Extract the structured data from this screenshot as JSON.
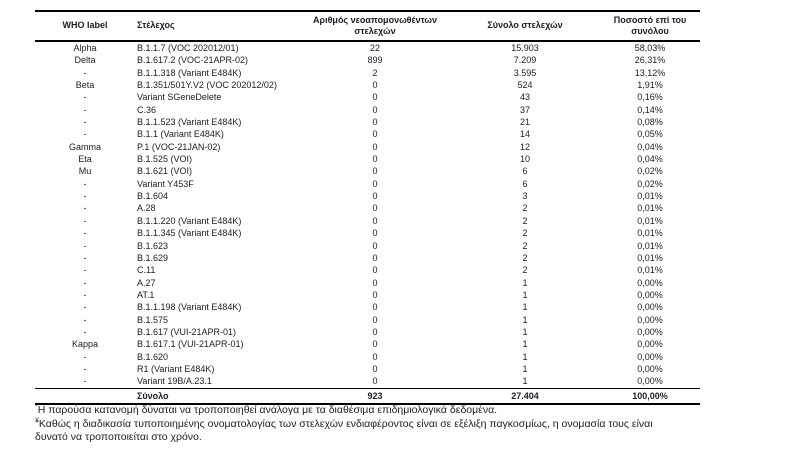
{
  "page": {
    "background": "#ffffff",
    "text_color": "#1c1c24",
    "border_color": "#000000"
  },
  "table": {
    "headers": [
      "WHO label",
      "Στέλεχος",
      "Αριθμός νεοαπομονωθέντων στελεχών",
      "Σύνολο στελεχών",
      "Ποσοστό επί του συνόλου"
    ],
    "rows": [
      {
        "who_label": "Alpha",
        "strain": "B.1.1.7 (VOC 202012/01)",
        "new_isolates": "22",
        "total_strains": "15.903",
        "percentage": "58,03%"
      },
      {
        "who_label": "Delta",
        "strain": "B.1.617.2 (VOC-21APR-02)",
        "new_isolates": "899",
        "total_strains": "7.209",
        "percentage": "26,31%"
      },
      {
        "who_label": "-",
        "strain": "B.1.1.318 (Variant E484K)",
        "new_isolates": "2",
        "total_strains": "3.595",
        "percentage": "13,12%"
      },
      {
        "who_label": "Beta",
        "strain": "B.1.351/501Y.V2 (VOC 202012/02)",
        "new_isolates": "0",
        "total_strains": "524",
        "percentage": "1,91%"
      },
      {
        "who_label": "-",
        "strain": "Variant SGeneDelete",
        "new_isolates": "0",
        "total_strains": "43",
        "percentage": "0,16%"
      },
      {
        "who_label": "-",
        "strain": "C.36",
        "new_isolates": "0",
        "total_strains": "37",
        "percentage": "0,14%"
      },
      {
        "who_label": "-",
        "strain": "B.1.1.523 (Variant E484K)",
        "new_isolates": "0",
        "total_strains": "21",
        "percentage": "0,08%"
      },
      {
        "who_label": "-",
        "strain": "B.1.1 (Variant E484K)",
        "new_isolates": "0",
        "total_strains": "14",
        "percentage": "0,05%"
      },
      {
        "who_label": "Gamma",
        "strain": "P.1 (VOC-21JAN-02)",
        "new_isolates": "0",
        "total_strains": "12",
        "percentage": "0,04%"
      },
      {
        "who_label": "Eta",
        "strain": "B.1.525 (VOI)",
        "new_isolates": "0",
        "total_strains": "10",
        "percentage": "0,04%"
      },
      {
        "who_label": "Mu",
        "strain": "B.1.621 (VOI)",
        "new_isolates": "0",
        "total_strains": "6",
        "percentage": "0,02%"
      },
      {
        "who_label": "-",
        "strain": "Variant Y453F",
        "new_isolates": "0",
        "total_strains": "6",
        "percentage": "0,02%"
      },
      {
        "who_label": "-",
        "strain": "B.1.604",
        "new_isolates": "0",
        "total_strains": "3",
        "percentage": "0,01%"
      },
      {
        "who_label": "-",
        "strain": "A.28",
        "new_isolates": "0",
        "total_strains": "2",
        "percentage": "0,01%"
      },
      {
        "who_label": "-",
        "strain": "B.1.1.220 (Variant E484K)",
        "new_isolates": "0",
        "total_strains": "2",
        "percentage": "0,01%"
      },
      {
        "who_label": "-",
        "strain": "B.1.1.345 (Variant E484K)",
        "new_isolates": "0",
        "total_strains": "2",
        "percentage": "0,01%"
      },
      {
        "who_label": "-",
        "strain": "B.1.623",
        "new_isolates": "0",
        "total_strains": "2",
        "percentage": "0,01%"
      },
      {
        "who_label": "-",
        "strain": "B.1.629",
        "new_isolates": "0",
        "total_strains": "2",
        "percentage": "0,01%"
      },
      {
        "who_label": "-",
        "strain": "C.11",
        "new_isolates": "0",
        "total_strains": "2",
        "percentage": "0,01%"
      },
      {
        "who_label": "-",
        "strain": "A.27",
        "new_isolates": "0",
        "total_strains": "1",
        "percentage": "0,00%"
      },
      {
        "who_label": "-",
        "strain": "AT.1",
        "new_isolates": "0",
        "total_strains": "1",
        "percentage": "0,00%"
      },
      {
        "who_label": "-",
        "strain": "B.1.1.198 (Variant E484K)",
        "new_isolates": "0",
        "total_strains": "1",
        "percentage": "0,00%"
      },
      {
        "who_label": "-",
        "strain": "B.1.575",
        "new_isolates": "0",
        "total_strains": "1",
        "percentage": "0,00%"
      },
      {
        "who_label": "-",
        "strain": "B.1.617 (VUI-21APR-01)",
        "new_isolates": "0",
        "total_strains": "1",
        "percentage": "0,00%"
      },
      {
        "who_label": "Kappa",
        "strain": "B.1.617.1 (VUI-21APR-01)",
        "new_isolates": "0",
        "total_strains": "1",
        "percentage": "0,00%"
      },
      {
        "who_label": "-",
        "strain": "B.1.620",
        "new_isolates": "0",
        "total_strains": "1",
        "percentage": "0,00%"
      },
      {
        "who_label": "-",
        "strain": "R1 (Variant E484K)",
        "new_isolates": "0",
        "total_strains": "1",
        "percentage": "0,00%"
      },
      {
        "who_label": "-",
        "strain": "Variant 19B/A.23.1",
        "new_isolates": "0",
        "total_strains": "1",
        "percentage": "0,00%"
      }
    ],
    "total": {
      "label": "Σύνολο",
      "new_isolates": "923",
      "total_strains": "27.404",
      "percentage": "100,00%"
    }
  },
  "footnotes": [
    {
      "marker": "*",
      "text": "Η παρούσα κατανομή δύναται να τροποποιηθεί ανάλογα με τα διαθέσιμα επιδημιολογικά δεδομένα."
    },
    {
      "marker": "¥",
      "text": "Καθώς η διαδικασία τυποποιημένης ονοματολογίας των στελεχών ενδιαφέροντος είναι σε εξέλιξη παγκοσμίως, η ονομασία τους είναι δυνατό να τροποποιείται στο χρόνο."
    }
  ]
}
